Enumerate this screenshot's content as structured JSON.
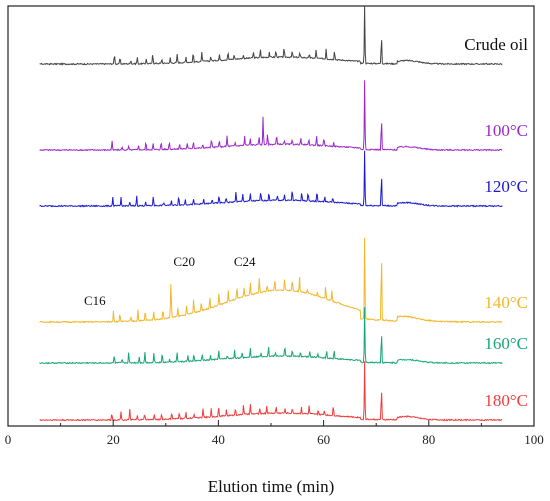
{
  "chart_data": {
    "type": "line",
    "xlabel": "Elution time (min)",
    "ylabel": "",
    "xlim": [
      0,
      100
    ],
    "x_ticks": [
      "0",
      "20",
      "40",
      "60",
      "80",
      "100"
    ],
    "x_range_of_traces": [
      6,
      94
    ],
    "legend": "labels placed at right end of each trace",
    "series": [
      {
        "name": "Crude oil",
        "color": "#444444",
        "hump_height": 0.12,
        "tall_peaks": [
          {
            "x": 67.8,
            "height": 1.0
          },
          {
            "x": 71.0,
            "height": 0.5
          }
        ]
      },
      {
        "name": "100°C",
        "color": "#9b27c9",
        "hump_height": 0.1,
        "tall_peaks": [
          {
            "x": 67.8,
            "height": 1.2
          },
          {
            "x": 71.0,
            "height": 0.55
          },
          {
            "x": 48.5,
            "height": 0.5
          }
        ]
      },
      {
        "name": "120°C",
        "color": "#1a1ad0",
        "hump_height": 0.1,
        "tall_peaks": [
          {
            "x": 67.8,
            "height": 0.95
          },
          {
            "x": 71.0,
            "height": 0.55
          }
        ]
      },
      {
        "name": "140°C",
        "color": "#f2b62c",
        "hump_height": 0.55,
        "tall_peaks": [
          {
            "x": 67.8,
            "height": 1.4
          },
          {
            "x": 71.0,
            "height": 1.2
          },
          {
            "x": 31.0,
            "height": 0.55
          }
        ]
      },
      {
        "name": "160°C",
        "color": "#16a672",
        "hump_height": 0.12,
        "tall_peaks": [
          {
            "x": 67.8,
            "height": 0.95
          },
          {
            "x": 71.0,
            "height": 0.55
          }
        ]
      },
      {
        "name": "180°C",
        "color": "#ef3c3c",
        "hump_height": 0.12,
        "tall_peaks": [
          {
            "x": 67.8,
            "height": 1.0
          },
          {
            "x": 71.0,
            "height": 0.55
          }
        ]
      }
    ],
    "annotations": [
      {
        "text": "C16",
        "x": 16.5,
        "series": "140°C"
      },
      {
        "text": "C20",
        "x": 33.5,
        "series": "140°C"
      },
      {
        "text": "C24",
        "x": 45.0,
        "series": "140°C"
      }
    ]
  }
}
